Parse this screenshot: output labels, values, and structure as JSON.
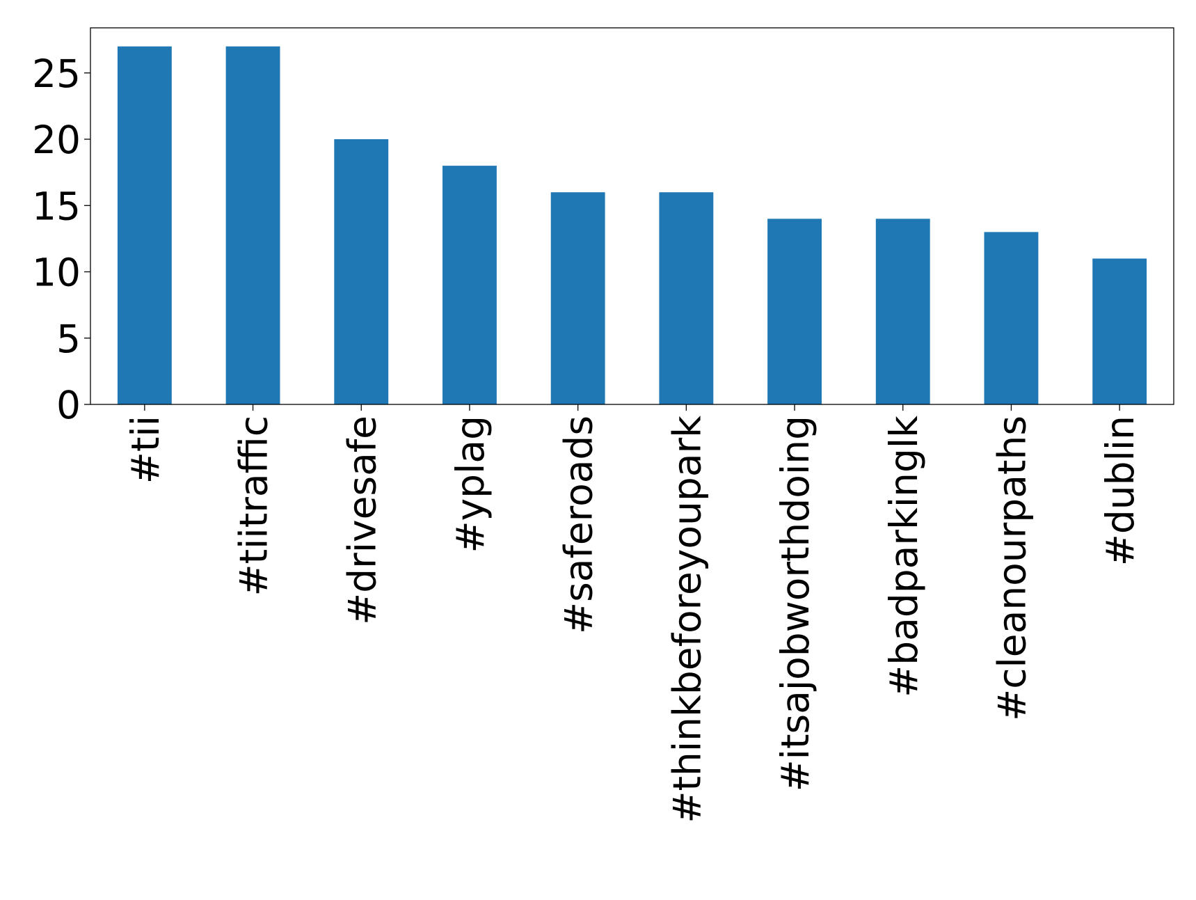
{
  "chart_data": {
    "type": "bar",
    "categories": [
      "#tii",
      "#tiitraffic",
      "#drivesafe",
      "#yplag",
      "#saferoads",
      "#thinkbeforeyoupark",
      "#itsajobworthdoing",
      "#badparkinglk",
      "#cleanourpaths",
      "#dublin"
    ],
    "values": [
      27,
      27,
      20,
      18,
      16,
      16,
      14,
      14,
      13,
      11
    ],
    "color": "#1f77b4",
    "ylim": [
      0,
      28.4
    ],
    "yticks": [
      0,
      5,
      10,
      15,
      20,
      25
    ],
    "grid": false
  }
}
